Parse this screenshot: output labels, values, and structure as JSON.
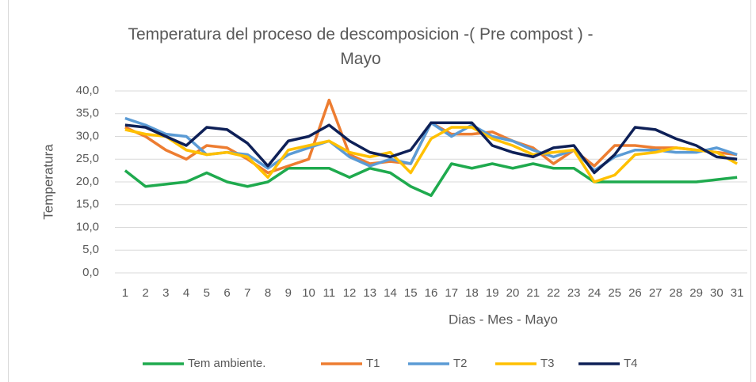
{
  "chart_data": {
    "type": "line",
    "title": "Temperatura del proceso de descomposicion -( Pre compost ) - Mayo",
    "x_label": "Dias - Mes  - Mayo",
    "y_label": "Temperatura",
    "categories": [
      "1",
      "2",
      "3",
      "4",
      "5",
      "6",
      "7",
      "8",
      "9",
      "10",
      "11",
      "12",
      "13",
      "14",
      "15",
      "16",
      "17",
      "18",
      "19",
      "20",
      "21",
      "22",
      "23",
      "24",
      "25",
      "26",
      "27",
      "28",
      "29",
      "30",
      "31"
    ],
    "ylim": [
      0,
      40
    ],
    "yticks": [
      {
        "value": 0,
        "label": "0,0"
      },
      {
        "value": 5,
        "label": "5,0"
      },
      {
        "value": 10,
        "label": "10,0"
      },
      {
        "value": 15,
        "label": "15,0"
      },
      {
        "value": 20,
        "label": "20,0"
      },
      {
        "value": 25,
        "label": "25,0"
      },
      {
        "value": 30,
        "label": "30,0"
      },
      {
        "value": 35,
        "label": "35,0"
      },
      {
        "value": 40,
        "label": "40,0"
      }
    ],
    "grid": true,
    "legend": "bottom",
    "series": [
      {
        "name": "Tem ambiente.",
        "color": "#1faa4e",
        "values": [
          22.5,
          19,
          19.5,
          20,
          22,
          20,
          19,
          20,
          23,
          23,
          23,
          21,
          23,
          22,
          19,
          17,
          24,
          23,
          24,
          23,
          24,
          23,
          23,
          20,
          20,
          20,
          20,
          20,
          20,
          20.5,
          21
        ]
      },
      {
        "name": "T1",
        "color": "#ed7d31",
        "values": [
          32,
          30,
          27,
          25,
          28,
          27.5,
          25,
          22,
          23.5,
          25,
          38,
          26,
          24,
          24.5,
          24,
          33,
          30.5,
          30.5,
          31,
          29,
          27.5,
          24,
          27,
          23.5,
          28,
          28,
          27.5,
          27.5,
          27,
          26.5,
          26
        ]
      },
      {
        "name": "T2",
        "color": "#5b9bd5",
        "values": [
          34,
          32.5,
          30.5,
          30,
          26,
          26.5,
          26,
          23,
          26,
          27.5,
          29,
          25.5,
          23.5,
          25,
          24,
          33,
          30,
          32.5,
          30,
          29,
          27,
          25.5,
          27,
          22.5,
          25.5,
          27,
          27,
          26.5,
          26.5,
          27.5,
          26
        ]
      },
      {
        "name": "T3",
        "color": "#ffc000",
        "values": [
          31.5,
          30.5,
          30,
          27,
          26,
          26.5,
          25.5,
          21,
          27,
          28,
          29,
          26.5,
          25.5,
          26.5,
          22,
          29.5,
          32,
          32,
          29.5,
          28,
          26,
          26.5,
          27,
          20,
          21.5,
          26,
          26.5,
          27.5,
          27,
          26.5,
          24
        ]
      },
      {
        "name": "T4",
        "color": "#0e2057",
        "values": [
          32.5,
          32,
          30,
          28,
          32,
          31.5,
          28.5,
          23.5,
          29,
          30,
          32.5,
          29,
          26.5,
          25.5,
          27,
          33,
          33,
          33,
          28,
          26.5,
          25.5,
          27.5,
          28,
          22,
          26,
          32,
          31.5,
          29.5,
          28,
          25.5,
          25
        ]
      }
    ]
  }
}
